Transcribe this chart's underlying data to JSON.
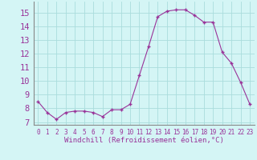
{
  "x": [
    0,
    1,
    2,
    3,
    4,
    5,
    6,
    7,
    8,
    9,
    10,
    11,
    12,
    13,
    14,
    15,
    16,
    17,
    18,
    19,
    20,
    21,
    22,
    23
  ],
  "y": [
    8.5,
    7.7,
    7.2,
    7.7,
    7.8,
    7.8,
    7.7,
    7.4,
    7.9,
    7.9,
    8.3,
    10.4,
    12.5,
    14.7,
    15.1,
    15.2,
    15.2,
    14.8,
    14.3,
    14.3,
    12.1,
    11.3,
    9.9,
    8.3
  ],
  "line_color": "#993399",
  "marker": "+",
  "xlabel": "Windchill (Refroidissement éolien,°C)",
  "ylabel_ticks": [
    7,
    8,
    9,
    10,
    11,
    12,
    13,
    14,
    15
  ],
  "ylim": [
    6.8,
    15.8
  ],
  "xlim": [
    -0.5,
    23.5
  ],
  "bg_color": "#d4f5f5",
  "grid_color": "#aadddd",
  "tick_color": "#993399",
  "xlabel_color": "#993399",
  "xlabel_fontsize": 6.5,
  "ytick_fontsize": 7.5,
  "xtick_fontsize": 5.5
}
